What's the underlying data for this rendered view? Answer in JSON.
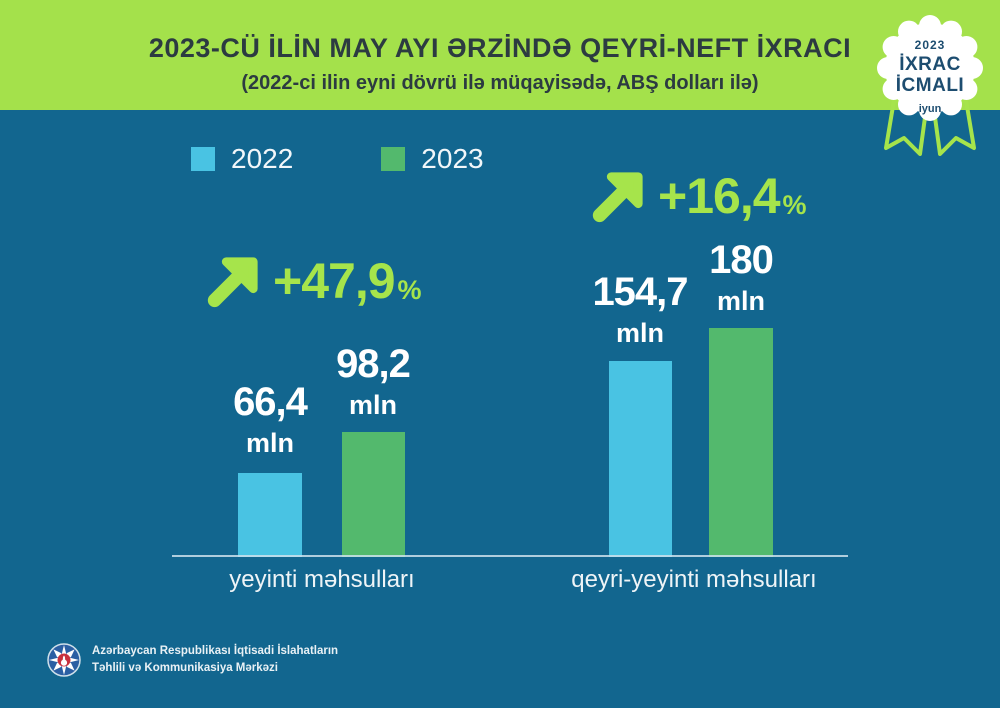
{
  "header": {
    "title": "2023-CÜ İLİN MAY AYI ƏRZİNDƏ QEYRİ-NEFT İXRACI",
    "subtitle": "(2022-ci ilin eyni dövrü ilə müqayisədə, ABŞ dolları ilə)"
  },
  "badge": {
    "year": "2023",
    "line1": "İXRAC",
    "line2": "İCMALI",
    "month": "iyun"
  },
  "chart_data": {
    "type": "bar",
    "title": "2023-cü ilin may ayı ərzində qeyri-neft ixracı",
    "categories": [
      "yeyinti məhsulları",
      "qeyri-yeyinti məhsulları"
    ],
    "series": [
      {
        "name": "2022",
        "color": "#49c3e3",
        "values": [
          66.4,
          154.7
        ]
      },
      {
        "name": "2023",
        "color": "#53b96d",
        "values": [
          98.2,
          180
        ]
      }
    ],
    "unit": "mln",
    "value_labels": [
      [
        "66,4",
        "98,2"
      ],
      [
        "154,7",
        "180"
      ]
    ],
    "changes": [
      {
        "value": "+47,9",
        "suffix": "%"
      },
      {
        "value": "+16,4",
        "suffix": "%"
      }
    ],
    "ylim": [
      0,
      180
    ],
    "legend_position": "top-left",
    "grid": false
  },
  "colors": {
    "background": "#12668f",
    "band": "#a4e14b",
    "accent_lime": "#a6e44b",
    "bar_2022": "#49c3e3",
    "bar_2023": "#53b96d",
    "badge_text": "#1d4d70"
  },
  "footer": {
    "line1": "Azərbaycan Respublikası İqtisadi İslahatların",
    "line2": "Təhlili və Kommunikasiya Mərkəzi"
  }
}
